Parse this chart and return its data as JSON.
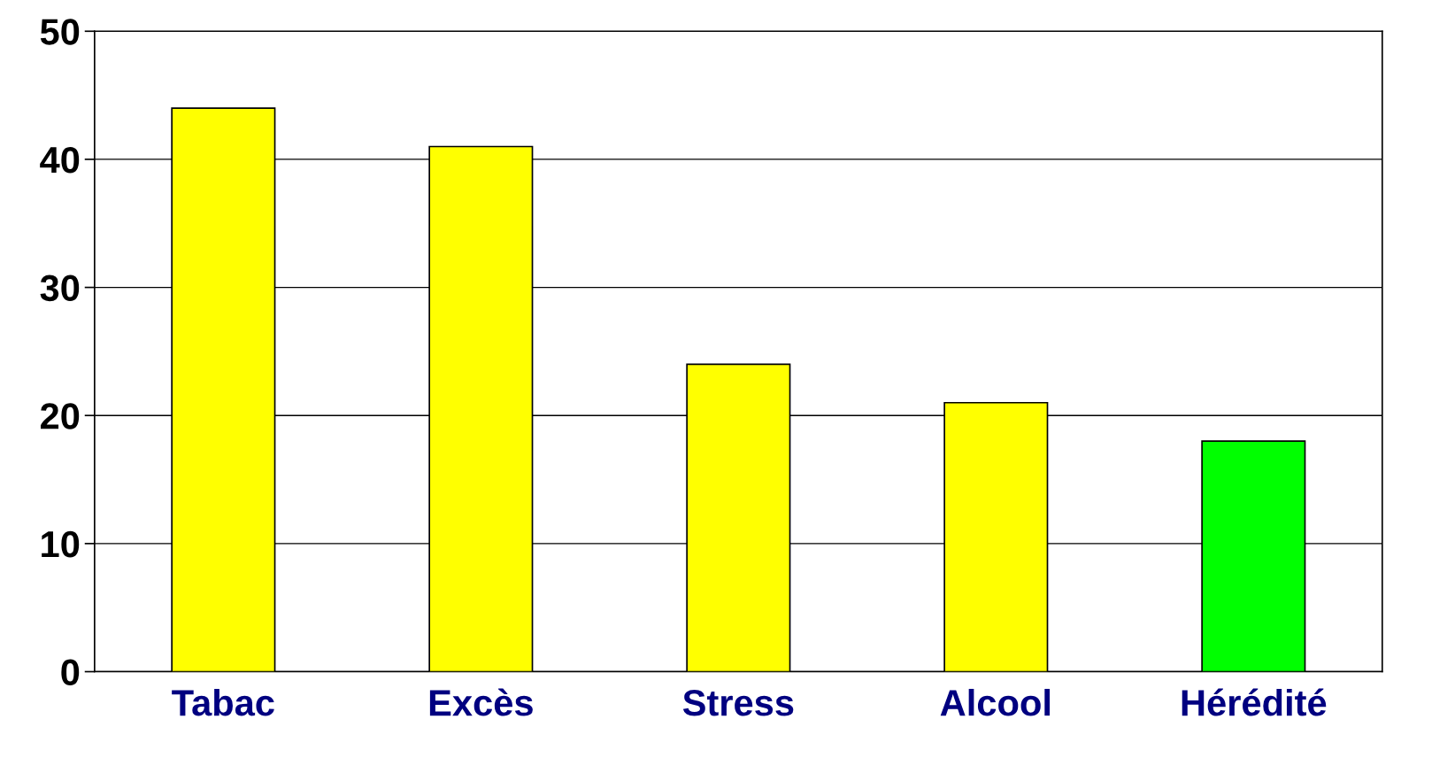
{
  "chart_data": {
    "type": "bar",
    "categories": [
      "Tabac",
      "Excès",
      "Stress",
      "Alcool",
      "Hérédité"
    ],
    "values": [
      44,
      41,
      24,
      21,
      18
    ],
    "colors": [
      "#ffff00",
      "#ffff00",
      "#ffff00",
      "#ffff00",
      "#00ff00"
    ],
    "ylim": [
      0,
      50
    ],
    "yticks": [
      0,
      10,
      20,
      30,
      40,
      50
    ],
    "grid": "y"
  }
}
